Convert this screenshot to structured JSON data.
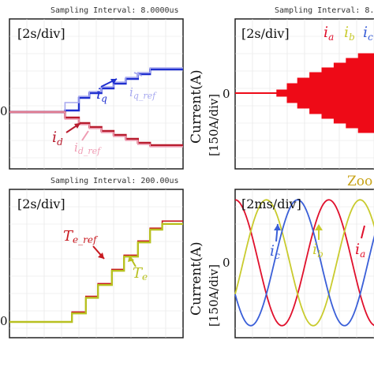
{
  "panels": [
    {
      "id": "tl",
      "header": "Sampling Interval:  8.0000us",
      "timebase": "[2s/div]",
      "zero_label": "0",
      "annotations": {
        "iq": "q",
        "iq_ref": "q_ref",
        "id": "d",
        "id_ref": "d_ref"
      }
    },
    {
      "id": "tr",
      "header": "Sampling Interval:  8.",
      "timebase": "[2s/div]",
      "ylabel": "Current(A)",
      "yscale": "[150A/div]",
      "zero_label": "0",
      "legend": [
        "a",
        "b",
        "c"
      ]
    },
    {
      "id": "bl",
      "header": "Sampling Interval:  200.00us",
      "timebase": "[2s/div]",
      "zero_label": "0",
      "annotations": {
        "te_ref": "e_ref",
        "te": "e"
      }
    },
    {
      "id": "br",
      "timebase": "[2ms/div]",
      "ylabel": "Current(A)",
      "yscale": "[150A/div]",
      "zero_label": "0",
      "labels": [
        "c",
        "b",
        "a"
      ]
    }
  ],
  "zoom_label": "Zoo",
  "colors": {
    "q_actual": "#1f2fcf",
    "q_ref": "#a7a9ef",
    "d_actual": "#b81c2e",
    "d_ref": "#ef9db4",
    "te_actual": "#b8c020",
    "te_ref": "#c81a20",
    "phase_a": "#e0102c",
    "phase_b": "#c9cb2e",
    "phase_c": "#3a5fd8",
    "fill": "#ee0a17",
    "zoom": "#c8a318"
  },
  "chart_data": [
    {
      "type": "line",
      "panel": "tl",
      "x_unit": "div",
      "series": [
        {
          "name": "q",
          "color_key": "q_actual",
          "steps": [
            [
              3.2,
              0.1
            ],
            [
              4.0,
              0.9
            ],
            [
              4.6,
              1.2
            ],
            [
              5.3,
              1.5
            ],
            [
              6.0,
              1.8
            ],
            [
              6.7,
              2.1
            ],
            [
              7.4,
              2.4
            ],
            [
              8.1,
              2.7
            ]
          ]
        },
        {
          "name": "q_ref",
          "color_key": "q_ref",
          "steps": [
            [
              3.2,
              0.6
            ],
            [
              4.0,
              1.0
            ],
            [
              4.6,
              1.3
            ],
            [
              5.3,
              1.6
            ],
            [
              6.0,
              1.9
            ],
            [
              6.7,
              2.2
            ],
            [
              7.4,
              2.5
            ],
            [
              8.1,
              2.8
            ]
          ]
        },
        {
          "name": "d",
          "color_key": "d_actual",
          "steps": [
            [
              3.2,
              -0.35
            ],
            [
              4.0,
              -0.7
            ],
            [
              4.6,
              -0.95
            ],
            [
              5.3,
              -1.2
            ],
            [
              6.0,
              -1.45
            ],
            [
              6.7,
              -1.7
            ],
            [
              7.4,
              -1.95
            ],
            [
              8.1,
              -2.1
            ]
          ]
        },
        {
          "name": "d_ref",
          "color_key": "d_ref",
          "steps": [
            [
              3.2,
              -0.45
            ],
            [
              4.0,
              -0.8
            ],
            [
              4.6,
              -1.05
            ],
            [
              5.3,
              -1.3
            ],
            [
              6.0,
              -1.55
            ],
            [
              6.7,
              -1.8
            ],
            [
              7.4,
              -2.05
            ],
            [
              8.1,
              -2.2
            ]
          ]
        }
      ]
    },
    {
      "type": "area",
      "panel": "tr",
      "x_unit": "div",
      "envelope_steps": [
        [
          2.4,
          0.2
        ],
        [
          3.0,
          0.6
        ],
        [
          3.6,
          0.95
        ],
        [
          4.3,
          1.3
        ],
        [
          5.0,
          1.6
        ],
        [
          5.7,
          1.9
        ],
        [
          6.4,
          2.2
        ],
        [
          7.1,
          2.5
        ]
      ]
    },
    {
      "type": "line",
      "panel": "bl",
      "x_unit": "div",
      "series": [
        {
          "name": "e_ref",
          "color_key": "te_ref",
          "steps": [
            [
              3.6,
              0.35
            ],
            [
              4.4,
              0.9
            ],
            [
              5.1,
              1.35
            ],
            [
              5.9,
              1.85
            ],
            [
              6.6,
              2.35
            ],
            [
              7.4,
              2.85
            ],
            [
              8.1,
              3.3
            ],
            [
              8.8,
              3.55
            ]
          ]
        },
        {
          "name": "e",
          "color_key": "te_actual",
          "steps": [
            [
              3.6,
              0.3
            ],
            [
              4.4,
              0.85
            ],
            [
              5.1,
              1.3
            ],
            [
              5.9,
              1.8
            ],
            [
              6.6,
              2.3
            ],
            [
              7.4,
              2.8
            ],
            [
              8.1,
              3.25
            ],
            [
              8.8,
              3.45
            ]
          ]
        }
      ]
    },
    {
      "type": "line",
      "panel": "br",
      "x_unit": "div",
      "series": [
        {
          "name": "a",
          "color_key": "phase_a",
          "amplitude": 1.9,
          "period": 5.4,
          "phase_deg": 90
        },
        {
          "name": "b",
          "color_key": "phase_b",
          "amplitude": 1.9,
          "period": 5.4,
          "phase_deg": -30
        },
        {
          "name": "c",
          "color_key": "phase_c",
          "amplitude": 1.9,
          "period": 5.4,
          "phase_deg": 210
        }
      ]
    }
  ]
}
